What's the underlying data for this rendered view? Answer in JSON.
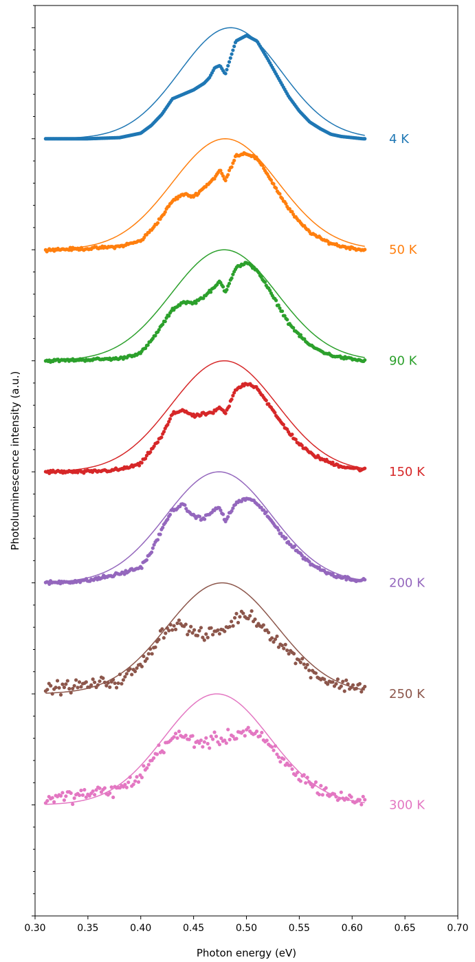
{
  "chart_data": {
    "type": "scatter",
    "title": "",
    "xlabel": "Photon energy (eV)",
    "ylabel": "Photoluminescence intensity (a.u.)",
    "xlim": [
      0.3,
      0.7
    ],
    "xticks": [
      "0.30",
      "0.35",
      "0.40",
      "0.45",
      "0.50",
      "0.55",
      "0.60",
      "0.65",
      "0.70"
    ],
    "ylim": [
      0,
      8.2
    ],
    "y_tick_labels_shown": false,
    "grid": false,
    "legend": "none",
    "fit_type": "gaussian",
    "series": [
      {
        "name": "4 K",
        "color": "#1f77b4",
        "offset": 7,
        "noise": 0.0,
        "fit": {
          "center": 0.485,
          "sigma": 0.048,
          "amplitude": 1.0
        },
        "points": [
          [
            0.31,
            0.0
          ],
          [
            0.35,
            0.0
          ],
          [
            0.38,
            0.01
          ],
          [
            0.4,
            0.05
          ],
          [
            0.41,
            0.12
          ],
          [
            0.42,
            0.22
          ],
          [
            0.43,
            0.36
          ],
          [
            0.44,
            0.4
          ],
          [
            0.45,
            0.44
          ],
          [
            0.46,
            0.5
          ],
          [
            0.465,
            0.55
          ],
          [
            0.47,
            0.64
          ],
          [
            0.475,
            0.66
          ],
          [
            0.48,
            0.58
          ],
          [
            0.49,
            0.88
          ],
          [
            0.5,
            0.93
          ],
          [
            0.51,
            0.88
          ],
          [
            0.52,
            0.72
          ],
          [
            0.53,
            0.55
          ],
          [
            0.54,
            0.38
          ],
          [
            0.55,
            0.25
          ],
          [
            0.56,
            0.15
          ],
          [
            0.57,
            0.09
          ],
          [
            0.58,
            0.04
          ],
          [
            0.59,
            0.02
          ],
          [
            0.61,
            0.0
          ]
        ]
      },
      {
        "name": "50 K",
        "color": "#ff7f0e",
        "offset": 6,
        "noise": 0.01,
        "fit": {
          "center": 0.48,
          "sigma": 0.05,
          "amplitude": 1.0
        },
        "points": [
          [
            0.31,
            0.0
          ],
          [
            0.35,
            0.01
          ],
          [
            0.38,
            0.03
          ],
          [
            0.4,
            0.08
          ],
          [
            0.41,
            0.18
          ],
          [
            0.42,
            0.3
          ],
          [
            0.43,
            0.44
          ],
          [
            0.44,
            0.5
          ],
          [
            0.45,
            0.48
          ],
          [
            0.46,
            0.56
          ],
          [
            0.47,
            0.65
          ],
          [
            0.475,
            0.72
          ],
          [
            0.48,
            0.62
          ],
          [
            0.49,
            0.85
          ],
          [
            0.5,
            0.87
          ],
          [
            0.51,
            0.82
          ],
          [
            0.52,
            0.68
          ],
          [
            0.53,
            0.52
          ],
          [
            0.54,
            0.37
          ],
          [
            0.55,
            0.25
          ],
          [
            0.56,
            0.16
          ],
          [
            0.57,
            0.1
          ],
          [
            0.58,
            0.06
          ],
          [
            0.59,
            0.03
          ],
          [
            0.61,
            0.0
          ]
        ]
      },
      {
        "name": "90 K",
        "color": "#2ca02c",
        "offset": 5,
        "noise": 0.01,
        "fit": {
          "center": 0.479,
          "sigma": 0.05,
          "amplitude": 1.0
        },
        "points": [
          [
            0.31,
            0.0
          ],
          [
            0.35,
            0.01
          ],
          [
            0.38,
            0.02
          ],
          [
            0.4,
            0.07
          ],
          [
            0.41,
            0.18
          ],
          [
            0.42,
            0.32
          ],
          [
            0.43,
            0.46
          ],
          [
            0.44,
            0.53
          ],
          [
            0.45,
            0.52
          ],
          [
            0.46,
            0.58
          ],
          [
            0.47,
            0.66
          ],
          [
            0.475,
            0.72
          ],
          [
            0.48,
            0.62
          ],
          [
            0.49,
            0.84
          ],
          [
            0.5,
            0.88
          ],
          [
            0.51,
            0.82
          ],
          [
            0.52,
            0.66
          ],
          [
            0.53,
            0.5
          ],
          [
            0.54,
            0.34
          ],
          [
            0.55,
            0.23
          ],
          [
            0.56,
            0.14
          ],
          [
            0.57,
            0.09
          ],
          [
            0.58,
            0.05
          ],
          [
            0.59,
            0.03
          ],
          [
            0.61,
            0.0
          ]
        ]
      },
      {
        "name": "150 K",
        "color": "#d62728",
        "offset": 4,
        "noise": 0.012,
        "fit": {
          "center": 0.479,
          "sigma": 0.05,
          "amplitude": 1.0
        },
        "points": [
          [
            0.31,
            0.0
          ],
          [
            0.35,
            0.0
          ],
          [
            0.38,
            0.02
          ],
          [
            0.4,
            0.07
          ],
          [
            0.41,
            0.2
          ],
          [
            0.42,
            0.32
          ],
          [
            0.43,
            0.52
          ],
          [
            0.44,
            0.56
          ],
          [
            0.45,
            0.5
          ],
          [
            0.46,
            0.52
          ],
          [
            0.47,
            0.54
          ],
          [
            0.475,
            0.58
          ],
          [
            0.48,
            0.52
          ],
          [
            0.49,
            0.74
          ],
          [
            0.5,
            0.8
          ],
          [
            0.51,
            0.76
          ],
          [
            0.52,
            0.62
          ],
          [
            0.53,
            0.48
          ],
          [
            0.54,
            0.36
          ],
          [
            0.55,
            0.25
          ],
          [
            0.56,
            0.17
          ],
          [
            0.57,
            0.12
          ],
          [
            0.58,
            0.08
          ],
          [
            0.59,
            0.05
          ],
          [
            0.61,
            0.02
          ]
        ]
      },
      {
        "name": "200 K",
        "color": "#9467bd",
        "offset": 3,
        "noise": 0.014,
        "fit": {
          "center": 0.474,
          "sigma": 0.05,
          "amplitude": 1.0
        },
        "points": [
          [
            0.31,
            0.0
          ],
          [
            0.35,
            0.02
          ],
          [
            0.38,
            0.08
          ],
          [
            0.4,
            0.14
          ],
          [
            0.41,
            0.28
          ],
          [
            0.42,
            0.48
          ],
          [
            0.43,
            0.66
          ],
          [
            0.44,
            0.7
          ],
          [
            0.45,
            0.6
          ],
          [
            0.46,
            0.58
          ],
          [
            0.47,
            0.66
          ],
          [
            0.475,
            0.68
          ],
          [
            0.48,
            0.55
          ],
          [
            0.49,
            0.72
          ],
          [
            0.5,
            0.76
          ],
          [
            0.51,
            0.72
          ],
          [
            0.52,
            0.6
          ],
          [
            0.53,
            0.48
          ],
          [
            0.54,
            0.36
          ],
          [
            0.55,
            0.27
          ],
          [
            0.56,
            0.18
          ],
          [
            0.57,
            0.12
          ],
          [
            0.58,
            0.08
          ],
          [
            0.59,
            0.05
          ],
          [
            0.61,
            0.02
          ]
        ]
      },
      {
        "name": "250 K",
        "color": "#8c564b",
        "offset": 2,
        "noise": 0.045,
        "fit": {
          "center": 0.477,
          "sigma": 0.052,
          "amplitude": 1.0
        },
        "points": [
          [
            0.31,
            0.05
          ],
          [
            0.35,
            0.08
          ],
          [
            0.38,
            0.12
          ],
          [
            0.4,
            0.25
          ],
          [
            0.41,
            0.4
          ],
          [
            0.42,
            0.55
          ],
          [
            0.43,
            0.62
          ],
          [
            0.44,
            0.62
          ],
          [
            0.45,
            0.55
          ],
          [
            0.46,
            0.52
          ],
          [
            0.47,
            0.56
          ],
          [
            0.48,
            0.58
          ],
          [
            0.49,
            0.68
          ],
          [
            0.5,
            0.72
          ],
          [
            0.51,
            0.66
          ],
          [
            0.52,
            0.56
          ],
          [
            0.53,
            0.48
          ],
          [
            0.54,
            0.38
          ],
          [
            0.55,
            0.3
          ],
          [
            0.56,
            0.22
          ],
          [
            0.57,
            0.15
          ],
          [
            0.58,
            0.1
          ],
          [
            0.59,
            0.08
          ],
          [
            0.61,
            0.06
          ]
        ]
      },
      {
        "name": "300 K",
        "color": "#e377c2",
        "offset": 1,
        "noise": 0.05,
        "fit": {
          "center": 0.472,
          "sigma": 0.05,
          "amplitude": 1.0
        },
        "points": [
          [
            0.31,
            0.05
          ],
          [
            0.35,
            0.1
          ],
          [
            0.38,
            0.14
          ],
          [
            0.4,
            0.26
          ],
          [
            0.41,
            0.4
          ],
          [
            0.42,
            0.52
          ],
          [
            0.43,
            0.6
          ],
          [
            0.44,
            0.62
          ],
          [
            0.45,
            0.58
          ],
          [
            0.46,
            0.56
          ],
          [
            0.47,
            0.58
          ],
          [
            0.48,
            0.6
          ],
          [
            0.49,
            0.64
          ],
          [
            0.5,
            0.67
          ],
          [
            0.51,
            0.64
          ],
          [
            0.52,
            0.54
          ],
          [
            0.53,
            0.44
          ],
          [
            0.54,
            0.34
          ],
          [
            0.55,
            0.26
          ],
          [
            0.56,
            0.2
          ],
          [
            0.57,
            0.14
          ],
          [
            0.58,
            0.1
          ],
          [
            0.59,
            0.06
          ],
          [
            0.61,
            0.04
          ]
        ]
      }
    ]
  }
}
